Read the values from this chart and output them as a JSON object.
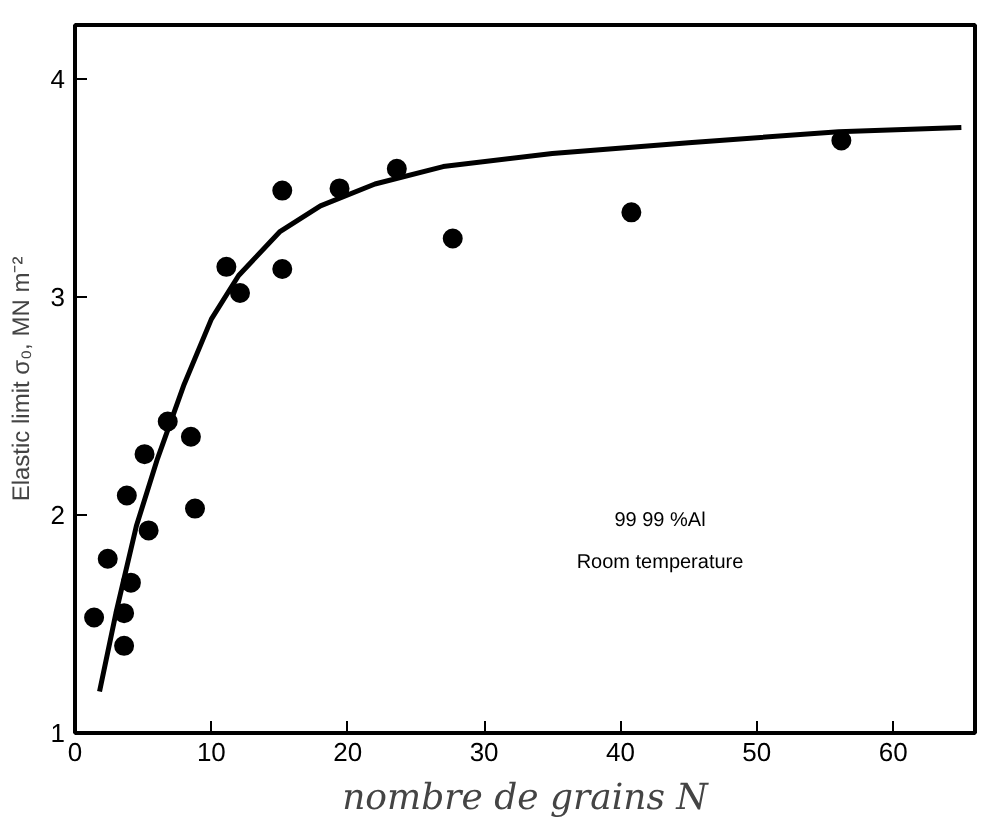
{
  "chart_data": {
    "type": "scatter",
    "xlabel": "nombre de grains N",
    "ylabel": "Elastic limit σ₀, MN m⁻²",
    "xlim": [
      0,
      66
    ],
    "ylim": [
      1,
      4.25
    ],
    "xticks": [
      0,
      10,
      20,
      30,
      40,
      50,
      60
    ],
    "yticks": [
      1,
      2,
      3,
      4
    ],
    "grid": false,
    "annotations": [
      "99 99 %Al",
      "Room temperature"
    ],
    "series": [
      {
        "color": "#000000",
        "marker": "circle",
        "x": [
          1.4,
          2.4,
          3.6,
          3.6,
          4.1,
          3.8,
          5.1,
          5.4,
          6.8,
          8.5,
          8.8,
          11.1,
          12.1,
          15.2,
          15.2,
          19.4,
          23.6,
          27.7,
          40.8,
          56.2
        ],
        "values": [
          1.53,
          1.8,
          1.55,
          1.4,
          1.69,
          2.09,
          2.28,
          1.93,
          2.43,
          2.36,
          2.03,
          3.14,
          3.02,
          3.49,
          3.13,
          3.5,
          3.59,
          3.27,
          3.39,
          3.72
        ]
      },
      {
        "type": "line",
        "color": "#000000",
        "x": [
          1.8,
          3,
          4.5,
          6,
          8,
          10,
          12,
          15,
          18,
          22,
          27,
          35,
          45,
          56,
          65
        ],
        "values": [
          1.19,
          1.55,
          1.95,
          2.25,
          2.6,
          2.9,
          3.1,
          3.3,
          3.42,
          3.52,
          3.6,
          3.66,
          3.71,
          3.76,
          3.78
        ]
      }
    ]
  }
}
